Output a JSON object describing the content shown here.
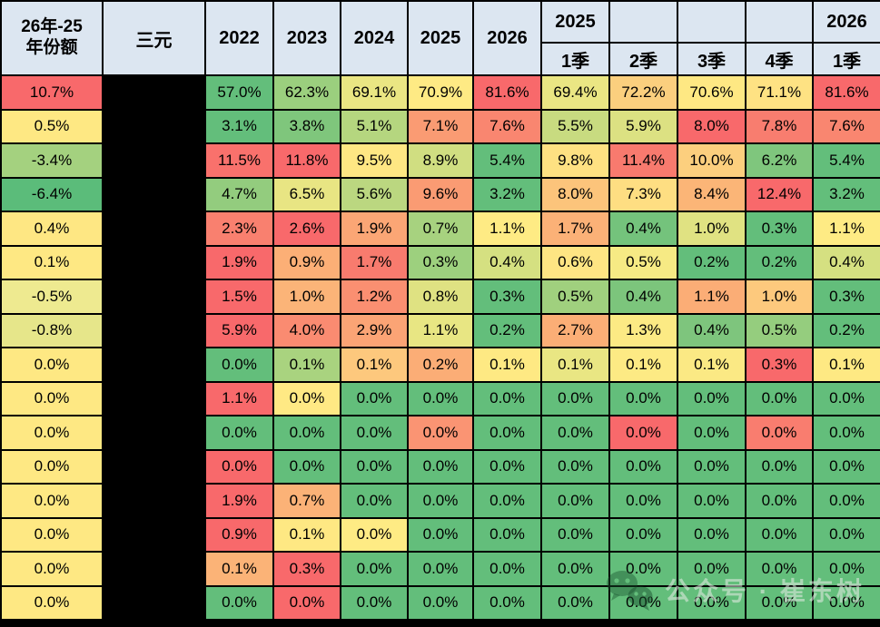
{
  "colors": {
    "header_bg": "#DCE6F1",
    "grid": "#000000",
    "redacted_black": "#000000",
    "scale_red": "#F8696B",
    "scale_yellow": "#FFEB84",
    "scale_green": "#63BE7B"
  },
  "header": {
    "corner_line1": "26年-25",
    "corner_line2": "年份额",
    "col2": "三元",
    "years": [
      "2022",
      "2023",
      "2024",
      "2025",
      "2026"
    ],
    "quarter_groups": [
      "2025",
      "",
      "",
      "",
      "2026"
    ],
    "quarters": [
      "1季",
      "2季",
      "3季",
      "4季",
      "1季"
    ]
  },
  "watermark": {
    "icon": "wechat-icon",
    "text": "公众号 · 崔东树"
  },
  "table": {
    "rows": [
      {
        "share": "10.7%",
        "share_color": "#F8696B",
        "values": [
          "57.0%",
          "62.3%",
          "69.1%",
          "70.9%",
          "81.6%",
          "69.4%",
          "72.2%",
          "70.6%",
          "71.1%",
          "81.6%"
        ],
        "colors": [
          "#63BE7B",
          "#9BCF7E",
          "#EAE683",
          "#FEEA84",
          "#F8696B",
          "#EAE683",
          "#FBCF7E",
          "#FEE883",
          "#FEE283",
          "#F8696B"
        ]
      },
      {
        "share": "0.5%",
        "share_color": "#FEE883",
        "values": [
          "3.1%",
          "3.8%",
          "5.1%",
          "7.1%",
          "7.6%",
          "5.5%",
          "5.9%",
          "8.0%",
          "7.8%",
          "7.6%"
        ],
        "colors": [
          "#63BE7B",
          "#7FC67C",
          "#B5D67F",
          "#FA9B73",
          "#F98670",
          "#C8DB80",
          "#DCE182",
          "#F8696B",
          "#F87D6F",
          "#F98670"
        ]
      },
      {
        "share": "-3.4%",
        "share_color": "#A4D17F",
        "values": [
          "11.5%",
          "11.8%",
          "9.5%",
          "8.9%",
          "5.4%",
          "9.8%",
          "11.4%",
          "10.0%",
          "6.2%",
          "5.4%"
        ],
        "colors": [
          "#F9716C",
          "#F8696B",
          "#FEE783",
          "#D0DE81",
          "#63BE7B",
          "#FEE182",
          "#F87A6E",
          "#FCCF7E",
          "#7FC67D",
          "#63BE7B"
        ]
      },
      {
        "share": "-6.4%",
        "share_color": "#5BBC7A",
        "values": [
          "4.7%",
          "6.5%",
          "5.6%",
          "9.6%",
          "3.2%",
          "8.0%",
          "7.3%",
          "8.4%",
          "12.4%",
          "3.2%"
        ],
        "colors": [
          "#93CC7E",
          "#E8E583",
          "#BBD780",
          "#FA9B73",
          "#63BE7B",
          "#FCC47B",
          "#FEDE82",
          "#FBB577",
          "#F8696B",
          "#63BE7B"
        ]
      },
      {
        "share": "0.4%",
        "share_color": "#FEE783",
        "values": [
          "2.3%",
          "2.6%",
          "1.9%",
          "0.7%",
          "1.1%",
          "1.7%",
          "0.4%",
          "1.0%",
          "0.3%",
          "1.1%"
        ],
        "colors": [
          "#F9806F",
          "#F8696B",
          "#FBA675",
          "#A7D27F",
          "#FEEB84",
          "#FBB177",
          "#74C37C",
          "#E0E282",
          "#63BE7B",
          "#FEEB84"
        ]
      },
      {
        "share": "0.1%",
        "share_color": "#FEE883",
        "values": [
          "1.9%",
          "0.9%",
          "1.7%",
          "0.3%",
          "0.4%",
          "0.6%",
          "0.5%",
          "0.2%",
          "0.2%",
          "0.4%"
        ],
        "colors": [
          "#F8696B",
          "#FCAF76",
          "#F87B6E",
          "#9DD07E",
          "#D5E081",
          "#FEE583",
          "#F6EA84",
          "#63BE7B",
          "#63BE7B",
          "#D5E081"
        ]
      },
      {
        "share": "-0.5%",
        "share_color": "#EEEA90",
        "values": [
          "1.5%",
          "1.0%",
          "1.2%",
          "0.8%",
          "0.3%",
          "0.5%",
          "0.4%",
          "1.1%",
          "1.0%",
          "0.3%"
        ],
        "colors": [
          "#F8696B",
          "#FBB478",
          "#FA8F71",
          "#DFE282",
          "#63BE7B",
          "#A0D07E",
          "#7CC57C",
          "#FBAD76",
          "#FDC97D",
          "#63BE7B"
        ]
      },
      {
        "share": "-0.8%",
        "share_color": "#E6E68A",
        "values": [
          "5.9%",
          "4.0%",
          "2.9%",
          "1.1%",
          "0.2%",
          "2.7%",
          "1.3%",
          "0.4%",
          "0.5%",
          "0.2%"
        ],
        "colors": [
          "#F8696B",
          "#FA8B71",
          "#FBA475",
          "#E8E683",
          "#63BE7B",
          "#FBAE76",
          "#FCEA84",
          "#7EC57D",
          "#95CD7E",
          "#63BE7B"
        ]
      },
      {
        "share": "0.0%",
        "share_color": "#FEE883",
        "values": [
          "0.0%",
          "0.1%",
          "0.1%",
          "0.2%",
          "0.1%",
          "0.1%",
          "0.1%",
          "0.1%",
          "0.3%",
          "0.1%"
        ],
        "colors": [
          "#63BE7B",
          "#A9D37F",
          "#FDC87D",
          "#FBAD76",
          "#FEE983",
          "#E9E683",
          "#FDEA84",
          "#FBE984",
          "#F8696B",
          "#FEE983"
        ]
      },
      {
        "share": "0.0%",
        "share_color": "#FEE883",
        "values": [
          "1.1%",
          "0.0%",
          "0.0%",
          "0.0%",
          "0.0%",
          "0.0%",
          "0.0%",
          "0.0%",
          "0.0%",
          "0.0%"
        ],
        "colors": [
          "#F8696B",
          "#FFE984",
          "#63BE7B",
          "#63BE7B",
          "#63BE7B",
          "#63BE7B",
          "#63BE7B",
          "#63BE7B",
          "#63BE7B",
          "#63BE7B"
        ]
      },
      {
        "share": "0.0%",
        "share_color": "#FEE883",
        "values": [
          "0.0%",
          "0.0%",
          "0.0%",
          "0.0%",
          "0.0%",
          "0.0%",
          "0.0%",
          "0.0%",
          "0.0%",
          "0.0%"
        ],
        "colors": [
          "#63BE7B",
          "#63BE7B",
          "#63BE7B",
          "#FA9473",
          "#63BE7B",
          "#63BE7B",
          "#F8696B",
          "#63BE7B",
          "#F97D6F",
          "#63BE7B"
        ]
      },
      {
        "share": "0.0%",
        "share_color": "#FEE883",
        "values": [
          "0.0%",
          "0.0%",
          "0.0%",
          "0.0%",
          "0.0%",
          "0.0%",
          "0.0%",
          "0.0%",
          "0.0%",
          "0.0%"
        ],
        "colors": [
          "#F8696B",
          "#63BE7B",
          "#63BE7B",
          "#63BE7B",
          "#63BE7B",
          "#63BE7B",
          "#63BE7B",
          "#63BE7B",
          "#63BE7B",
          "#63BE7B"
        ]
      },
      {
        "share": "0.0%",
        "share_color": "#FEE883",
        "values": [
          "1.9%",
          "0.7%",
          "0.0%",
          "0.0%",
          "0.0%",
          "0.0%",
          "0.0%",
          "0.0%",
          "0.0%",
          "0.0%"
        ],
        "colors": [
          "#F8696B",
          "#FBB277",
          "#63BE7B",
          "#63BE7B",
          "#63BE7B",
          "#63BE7B",
          "#63BE7B",
          "#63BE7B",
          "#63BE7B",
          "#63BE7B"
        ]
      },
      {
        "share": "0.0%",
        "share_color": "#FEE883",
        "values": [
          "0.9%",
          "0.1%",
          "0.0%",
          "0.0%",
          "0.0%",
          "0.0%",
          "0.0%",
          "0.0%",
          "0.0%",
          "0.0%"
        ],
        "colors": [
          "#F8696B",
          "#FEE883",
          "#FEEB84",
          "#63BE7B",
          "#63BE7B",
          "#63BE7B",
          "#63BE7B",
          "#63BE7B",
          "#63BE7B",
          "#63BE7B"
        ]
      },
      {
        "share": "0.0%",
        "share_color": "#FEE883",
        "values": [
          "0.1%",
          "0.3%",
          "0.0%",
          "0.0%",
          "0.0%",
          "0.0%",
          "0.0%",
          "0.0%",
          "0.0%",
          "0.0%"
        ],
        "colors": [
          "#FBB377",
          "#F8696B",
          "#63BE7B",
          "#63BE7B",
          "#63BE7B",
          "#63BE7B",
          "#63BE7B",
          "#63BE7B",
          "#63BE7B",
          "#63BE7B"
        ]
      },
      {
        "share": "0.0%",
        "share_color": "#FEE883",
        "values": [
          "0.0%",
          "0.0%",
          "0.0%",
          "0.0%",
          "0.0%",
          "0.0%",
          "0.0%",
          "0.0%",
          "0.0%",
          "0.0%"
        ],
        "colors": [
          "#63BE7B",
          "#F8696B",
          "#63BE7B",
          "#63BE7B",
          "#63BE7B",
          "#63BE7B",
          "#63BE7B",
          "#63BE7B",
          "#63BE7B",
          "#63BE7B"
        ]
      }
    ]
  },
  "chart_data": {
    "type": "heatmap",
    "title": "三元 份额热力表 (26年-25年份额)",
    "unit": "%",
    "row_label_column_header": "三元",
    "row_labels_visible": false,
    "share_diff_column_header": "26年-25年份额",
    "share_diff_values": [
      10.7,
      0.5,
      -3.4,
      -6.4,
      0.4,
      0.1,
      -0.5,
      -0.8,
      0.0,
      0.0,
      0.0,
      0.0,
      0.0,
      0.0,
      0.0,
      0.0
    ],
    "columns": [
      "2022",
      "2023",
      "2024",
      "2025",
      "2026",
      "2025-1季",
      "2025-2季",
      "2025-3季",
      "2025-4季",
      "2026-1季"
    ],
    "values": [
      [
        57.0,
        62.3,
        69.1,
        70.9,
        81.6,
        69.4,
        72.2,
        70.6,
        71.1,
        81.6
      ],
      [
        3.1,
        3.8,
        5.1,
        7.1,
        7.6,
        5.5,
        5.9,
        8.0,
        7.8,
        7.6
      ],
      [
        11.5,
        11.8,
        9.5,
        8.9,
        5.4,
        9.8,
        11.4,
        10.0,
        6.2,
        5.4
      ],
      [
        4.7,
        6.5,
        5.6,
        9.6,
        3.2,
        8.0,
        7.3,
        8.4,
        12.4,
        3.2
      ],
      [
        2.3,
        2.6,
        1.9,
        0.7,
        1.1,
        1.7,
        0.4,
        1.0,
        0.3,
        1.1
      ],
      [
        1.9,
        0.9,
        1.7,
        0.3,
        0.4,
        0.6,
        0.5,
        0.2,
        0.2,
        0.4
      ],
      [
        1.5,
        1.0,
        1.2,
        0.8,
        0.3,
        0.5,
        0.4,
        1.1,
        1.0,
        0.3
      ],
      [
        5.9,
        4.0,
        2.9,
        1.1,
        0.2,
        2.7,
        1.3,
        0.4,
        0.5,
        0.2
      ],
      [
        0.0,
        0.1,
        0.1,
        0.2,
        0.1,
        0.1,
        0.1,
        0.1,
        0.3,
        0.1
      ],
      [
        1.1,
        0.0,
        0.0,
        0.0,
        0.0,
        0.0,
        0.0,
        0.0,
        0.0,
        0.0
      ],
      [
        0.0,
        0.0,
        0.0,
        0.0,
        0.0,
        0.0,
        0.0,
        0.0,
        0.0,
        0.0
      ],
      [
        0.0,
        0.0,
        0.0,
        0.0,
        0.0,
        0.0,
        0.0,
        0.0,
        0.0,
        0.0
      ],
      [
        1.9,
        0.7,
        0.0,
        0.0,
        0.0,
        0.0,
        0.0,
        0.0,
        0.0,
        0.0
      ],
      [
        0.9,
        0.1,
        0.0,
        0.0,
        0.0,
        0.0,
        0.0,
        0.0,
        0.0,
        0.0
      ],
      [
        0.1,
        0.3,
        0.0,
        0.0,
        0.0,
        0.0,
        0.0,
        0.0,
        0.0,
        0.0
      ],
      [
        0.0,
        0.0,
        0.0,
        0.0,
        0.0,
        0.0,
        0.0,
        0.0,
        0.0,
        0.0
      ]
    ],
    "color_scale": {
      "low": "#63BE7B",
      "mid": "#FFEB84",
      "high": "#F8696B",
      "note": "3-color scale per row"
    },
    "legend_position": "none",
    "grid": true
  }
}
